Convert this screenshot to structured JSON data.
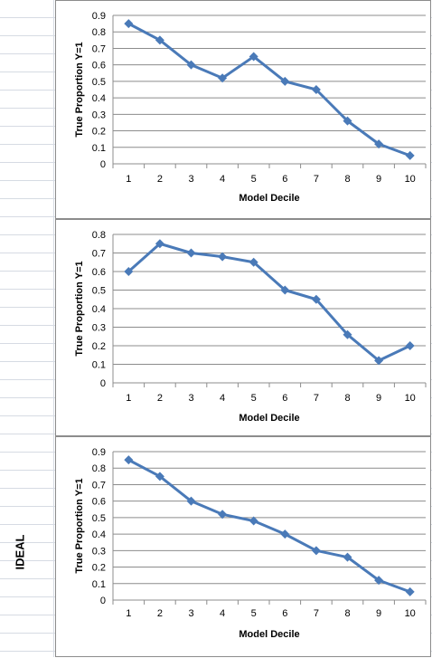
{
  "row_label": "IDEAL",
  "colors": {
    "series": "#4a7ab8",
    "grid": "#8c8c8c",
    "axis": "#8c8c8c"
  },
  "chart_data": [
    {
      "type": "line",
      "xlabel": "Model Decile",
      "ylabel": "True Proportion Y=1",
      "x": [
        1,
        2,
        3,
        4,
        5,
        6,
        7,
        8,
        9,
        10
      ],
      "series": [
        {
          "values": [
            0.85,
            0.75,
            0.6,
            0.52,
            0.65,
            0.5,
            0.45,
            0.26,
            0.12,
            0.05
          ]
        }
      ],
      "ylim": [
        0,
        0.9
      ],
      "y_ticks": [
        "0",
        "0.1",
        "0.2",
        "0.3",
        "0.4",
        "0.5",
        "0.6",
        "0.7",
        "0.8",
        "0.9"
      ],
      "grid": true,
      "marker": "diamond"
    },
    {
      "type": "line",
      "xlabel": "Model Decile",
      "ylabel": "True Proportion Y=1",
      "x": [
        1,
        2,
        3,
        4,
        5,
        6,
        7,
        8,
        9,
        10
      ],
      "series": [
        {
          "values": [
            0.6,
            0.75,
            0.7,
            0.68,
            0.65,
            0.5,
            0.45,
            0.26,
            0.12,
            0.2
          ]
        }
      ],
      "ylim": [
        0,
        0.8
      ],
      "y_ticks": [
        "0",
        "0.1",
        "0.2",
        "0.3",
        "0.4",
        "0.5",
        "0.6",
        "0.7",
        "0.8"
      ],
      "grid": true,
      "marker": "diamond"
    },
    {
      "type": "line",
      "xlabel": "Model Decile",
      "ylabel": "True Proportion Y=1",
      "x": [
        1,
        2,
        3,
        4,
        5,
        6,
        7,
        8,
        9,
        10
      ],
      "series": [
        {
          "values": [
            0.85,
            0.75,
            0.6,
            0.52,
            0.48,
            0.4,
            0.3,
            0.26,
            0.12,
            0.05
          ]
        }
      ],
      "ylim": [
        0,
        0.9
      ],
      "y_ticks": [
        "0",
        "0.1",
        "0.2",
        "0.3",
        "0.4",
        "0.5",
        "0.6",
        "0.7",
        "0.8",
        "0.9"
      ],
      "grid": true,
      "marker": "diamond"
    }
  ]
}
